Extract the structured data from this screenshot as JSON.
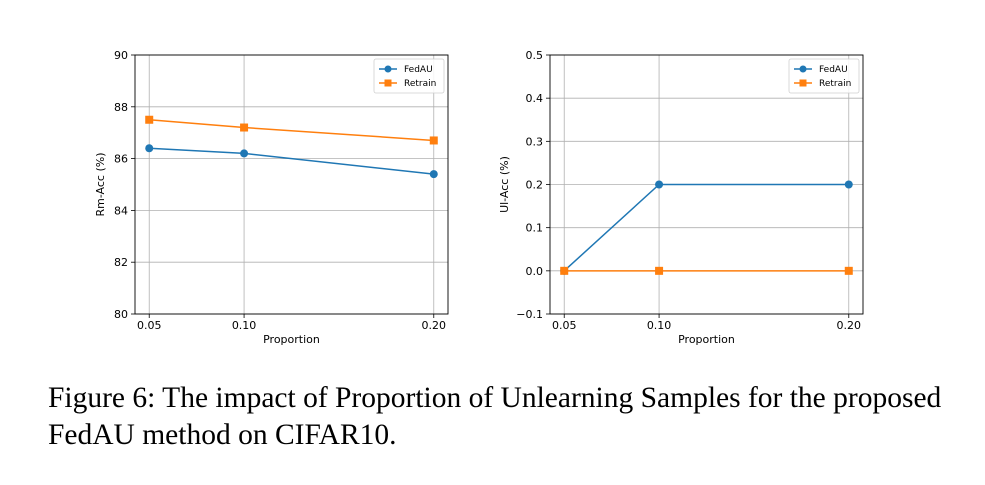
{
  "chart_data": [
    {
      "type": "line",
      "title": "",
      "xlabel": "Proportion",
      "ylabel": "Rm-Acc (%)",
      "x": [
        0.05,
        0.1,
        0.2
      ],
      "xticks": [
        "0.05",
        "0.10",
        "0.20"
      ],
      "ylim": [
        80,
        90
      ],
      "yticks": [
        "80",
        "82",
        "84",
        "86",
        "88",
        "90"
      ],
      "grid": true,
      "legend_position": "top-right",
      "series": [
        {
          "name": "FedAU",
          "values": [
            86.4,
            86.2,
            85.4
          ],
          "color": "#1f77b4",
          "marker": "circle"
        },
        {
          "name": "Retrain",
          "values": [
            87.5,
            87.2,
            86.7
          ],
          "color": "#ff7f0e",
          "marker": "square"
        }
      ]
    },
    {
      "type": "line",
      "title": "",
      "xlabel": "Proportion",
      "ylabel": "Ul-Acc (%)",
      "x": [
        0.05,
        0.1,
        0.2
      ],
      "xticks": [
        "0.05",
        "0.10",
        "0.20"
      ],
      "ylim": [
        -0.1,
        0.5
      ],
      "yticks": [
        "−0.1",
        "0.0",
        "0.1",
        "0.2",
        "0.3",
        "0.4",
        "0.5"
      ],
      "grid": true,
      "legend_position": "top-right",
      "series": [
        {
          "name": "FedAU",
          "values": [
            0.0,
            0.2,
            0.2
          ],
          "color": "#1f77b4",
          "marker": "circle"
        },
        {
          "name": "Retrain",
          "values": [
            0.0,
            0.0,
            0.0
          ],
          "color": "#ff7f0e",
          "marker": "square"
        }
      ]
    }
  ],
  "caption": "Figure 6: The impact of Proportion of Unlearning Samples for the proposed FedAU method on CIFAR10."
}
